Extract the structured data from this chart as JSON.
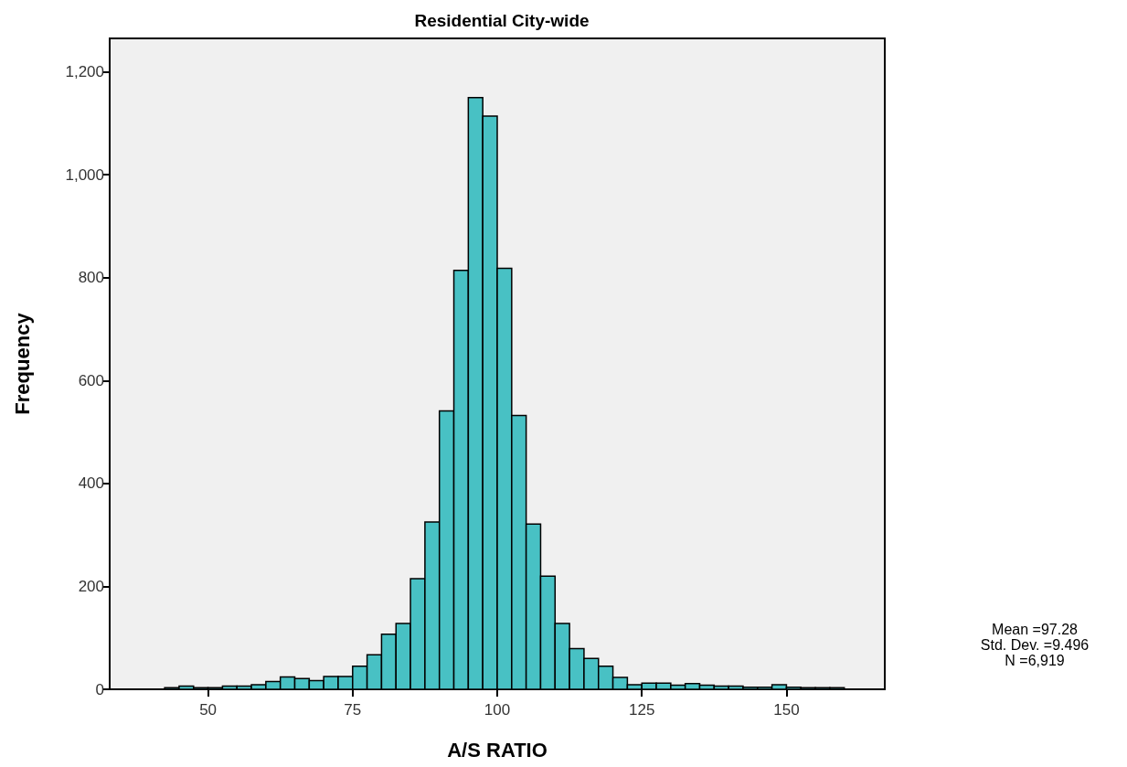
{
  "chart_data": {
    "type": "histogram",
    "title": "Residential City-wide",
    "xlabel": "A/S RATIO",
    "ylabel": "Frequency",
    "bins": [
      42.5,
      45,
      47.5,
      50,
      52.5,
      55,
      57.5,
      60,
      62.5,
      65,
      67.5,
      70,
      72.5,
      75,
      77.5,
      80,
      82.5,
      85,
      87.5,
      90,
      92.5,
      95,
      97.5,
      100,
      102.5,
      105,
      107.5,
      110,
      112.5,
      115,
      117.5,
      120,
      122.5,
      125,
      127.5,
      130,
      132.5,
      135,
      137.5,
      140,
      142.5,
      145,
      147.5,
      150,
      152.5,
      155,
      157.5,
      160
    ],
    "values": [
      3,
      6,
      3,
      3,
      6,
      6,
      9,
      15,
      24,
      21,
      17,
      25,
      25,
      45,
      67,
      107,
      128,
      215,
      325,
      541,
      814,
      1150,
      1114,
      818,
      532,
      321,
      220,
      128,
      79,
      60,
      45,
      23,
      9,
      12,
      12,
      8,
      11,
      8,
      6,
      6,
      4,
      4,
      9,
      4,
      3,
      3,
      3
    ],
    "color": "#48c1c4",
    "xlim": [
      33,
      167
    ],
    "xticks": [
      50,
      75,
      100,
      125,
      150
    ],
    "ylim": [
      0,
      1265
    ],
    "yticks": [
      0,
      200,
      400,
      600,
      800,
      {
        "value": 1000,
        "label": "1,000"
      },
      {
        "value": 1200,
        "label": "1,200"
      }
    ],
    "grid": false,
    "annotations": [
      "Mean =97.28",
      "Std. Dev. =9.496",
      "N =6,919"
    ]
  }
}
